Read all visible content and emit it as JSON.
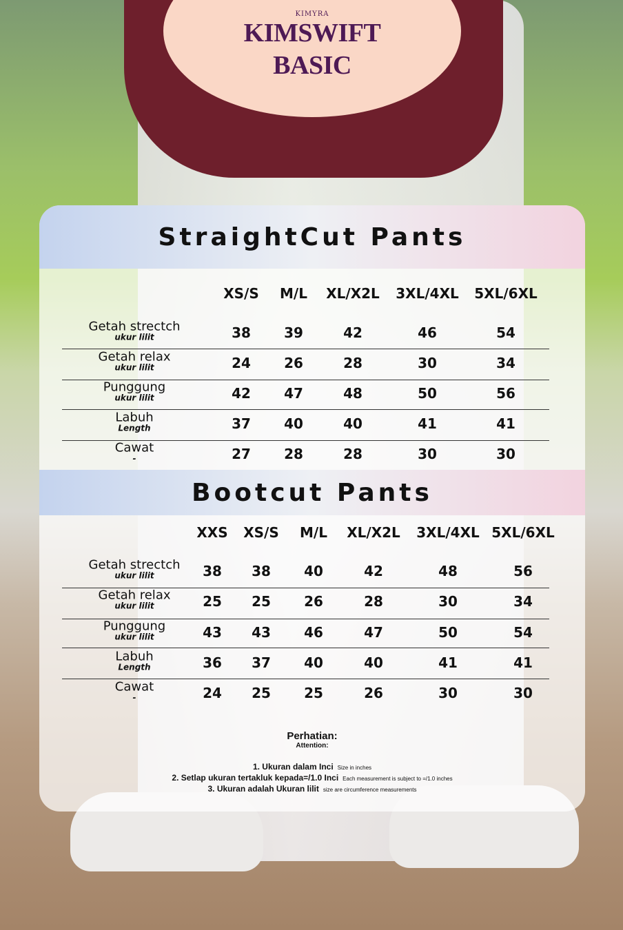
{
  "brand": {
    "maker": "KIMYRA",
    "line1": "KIMSWIFT",
    "line2": "BASIC",
    "color": "#4e1a55"
  },
  "straight": {
    "title": "StraightCut Pants",
    "columns": [
      "XS/S",
      "M/L",
      "XL/X2L",
      "3XL/4XL",
      "5XL/6XL"
    ],
    "rows": [
      {
        "label": "Getah strectch",
        "sub": "ukur lilit",
        "values": [
          "38",
          "39",
          "42",
          "46",
          "54"
        ]
      },
      {
        "label": "Getah relax",
        "sub": "ukur lilit",
        "values": [
          "24",
          "26",
          "28",
          "30",
          "34"
        ]
      },
      {
        "label": "Punggung",
        "sub": "ukur lilit",
        "values": [
          "42",
          "47",
          "48",
          "50",
          "56"
        ]
      },
      {
        "label": "Labuh",
        "sub": "Length",
        "values": [
          "37",
          "40",
          "40",
          "41",
          "41"
        ]
      },
      {
        "label": "Cawat",
        "sub": "-",
        "values": [
          "27",
          "28",
          "28",
          "30",
          "30"
        ]
      }
    ]
  },
  "bootcut": {
    "title": "Bootcut Pants",
    "columns": [
      "XXS",
      "XS/S",
      "M/L",
      "XL/X2L",
      "3XL/4XL",
      "5XL/6XL"
    ],
    "rows": [
      {
        "label": "Getah strectch",
        "sub": "ukur lilit",
        "values": [
          "38",
          "38",
          "40",
          "42",
          "48",
          "56"
        ]
      },
      {
        "label": "Getah relax",
        "sub": "ukur lilit",
        "values": [
          "25",
          "25",
          "26",
          "28",
          "30",
          "34"
        ]
      },
      {
        "label": "Punggung",
        "sub": "ukur lilit",
        "values": [
          "43",
          "43",
          "46",
          "47",
          "50",
          "54"
        ]
      },
      {
        "label": "Labuh",
        "sub": "Length",
        "values": [
          "36",
          "37",
          "40",
          "40",
          "41",
          "41"
        ]
      },
      {
        "label": "Cawat",
        "sub": "-",
        "values": [
          "24",
          "25",
          "25",
          "26",
          "30",
          "30"
        ]
      }
    ]
  },
  "notes": {
    "title": "Perhatian:",
    "subtitle": "Attention:",
    "items": [
      {
        "text": "1. Ukuran dalam Inci",
        "en": "Size in inches"
      },
      {
        "text": "2. Setlap ukuran tertakluk kepada=/1.0 Inci",
        "en": "Each measurement is subject to =/1.0 inches"
      },
      {
        "text": "3. Ukuran adalah Ukuran lilit",
        "en": "size are circumference measurements"
      }
    ]
  }
}
